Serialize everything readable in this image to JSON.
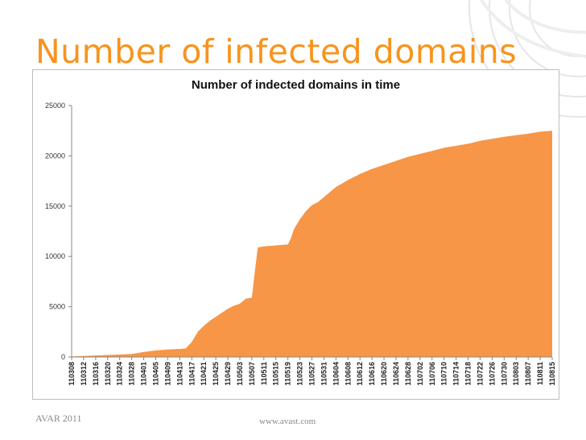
{
  "slide": {
    "title": "Number of infected domains",
    "footer_left": "AVAR 2011",
    "footer_center": "www.avast.com"
  },
  "colors": {
    "accent": "#f7941d",
    "fill": "#f79646"
  },
  "chart_data": {
    "type": "area",
    "title": "Number of indected domains in time",
    "xlabel": "",
    "ylabel": "",
    "ylim": [
      0,
      25000
    ],
    "yticks": [
      0,
      5000,
      10000,
      15000,
      20000,
      25000
    ],
    "grid": false,
    "x_tick_labels": [
      "110308",
      "110312",
      "110316",
      "110320",
      "110324",
      "110328",
      "110401",
      "110405",
      "110409",
      "110413",
      "110417",
      "110421",
      "110425",
      "110429",
      "110503",
      "110507",
      "110511",
      "110515",
      "110519",
      "110523",
      "110527",
      "110531",
      "110604",
      "110608",
      "110612",
      "110616",
      "110620",
      "110624",
      "110628",
      "110702",
      "110706",
      "110710",
      "110714",
      "110718",
      "110722",
      "110726",
      "110730",
      "110803",
      "110807",
      "110811",
      "110815"
    ],
    "series": [
      {
        "x": [
          "110308",
          "110312",
          "110316",
          "110320",
          "110324",
          "110328",
          "110401",
          "110405",
          "110409",
          "110413",
          "110415",
          "110417",
          "110419",
          "110421",
          "110423",
          "110425",
          "110427",
          "110429",
          "110501",
          "110503",
          "110505",
          "110507",
          "110508",
          "110509",
          "110511",
          "110515",
          "110519",
          "110520",
          "110521",
          "110523",
          "110525",
          "110527",
          "110529",
          "110531",
          "110602",
          "110604",
          "110608",
          "110612",
          "110616",
          "110620",
          "110624",
          "110628",
          "110702",
          "110706",
          "110710",
          "110714",
          "110718",
          "110722",
          "110726",
          "110730",
          "110803",
          "110807",
          "110811",
          "110815"
        ],
        "y": [
          50,
          100,
          150,
          200,
          250,
          300,
          500,
          650,
          750,
          800,
          850,
          1500,
          2500,
          3100,
          3600,
          4000,
          4400,
          4800,
          5100,
          5300,
          5800,
          5900,
          8500,
          10900,
          11000,
          11100,
          11200,
          11800,
          12700,
          13700,
          14500,
          15100,
          15400,
          15900,
          16400,
          16900,
          17600,
          18200,
          18700,
          19100,
          19500,
          19900,
          20200,
          20500,
          20800,
          21000,
          21200,
          21500,
          21700,
          21900,
          22050,
          22200,
          22400,
          22500
        ]
      }
    ]
  }
}
